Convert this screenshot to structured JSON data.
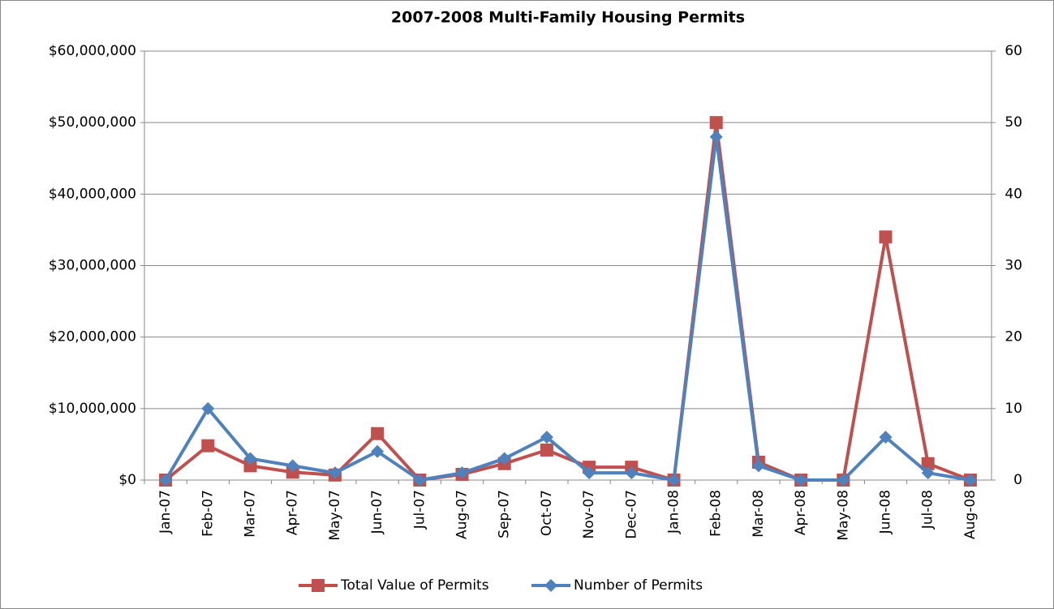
{
  "chart_data": {
    "type": "line",
    "title": "2007-2008 Multi-Family Housing Permits",
    "categories": [
      "Jan-07",
      "Feb-07",
      "Mar-07",
      "Apr-07",
      "May-07",
      "Jun-07",
      "Jul-07",
      "Aug-07",
      "Sep-07",
      "Oct-07",
      "Nov-07",
      "Dec-07",
      "Jan-08",
      "Feb-08",
      "Mar-08",
      "Apr-08",
      "May-08",
      "Jun-08",
      "Jul-08",
      "Aug-08"
    ],
    "series": [
      {
        "name": "Total Value of Permits",
        "color": "#c0504d",
        "marker": "square",
        "values": [
          0,
          4800000,
          2000000,
          1100000,
          700000,
          6500000,
          0,
          800000,
          2300000,
          4200000,
          1800000,
          1800000,
          0,
          50000000,
          2500000,
          0,
          0,
          34000000,
          2300000,
          0
        ]
      },
      {
        "name": "Number of Permits",
        "color": "#4f81bd",
        "marker": "diamond",
        "axis": "y2",
        "values": [
          0,
          10,
          3,
          2,
          1,
          4,
          0,
          1,
          3,
          6,
          1,
          1,
          0,
          48,
          2,
          0,
          0,
          6,
          1,
          0
        ]
      }
    ],
    "ylim": [
      0,
      60000000
    ],
    "yticks": [
      {
        "value": 0,
        "label": "$0"
      },
      {
        "value": 10000000,
        "label": "$10,000,000"
      },
      {
        "value": 20000000,
        "label": "$20,000,000"
      },
      {
        "value": 30000000,
        "label": "$30,000,000"
      },
      {
        "value": 40000000,
        "label": "$40,000,000"
      },
      {
        "value": 50000000,
        "label": "$50,000,000"
      },
      {
        "value": 60000000,
        "label": "$60,000,000"
      }
    ],
    "y2lim": [
      0,
      60
    ],
    "y2ticks": [
      0,
      10,
      20,
      30,
      40,
      50,
      60
    ],
    "grid": true,
    "legend": "bottom"
  }
}
